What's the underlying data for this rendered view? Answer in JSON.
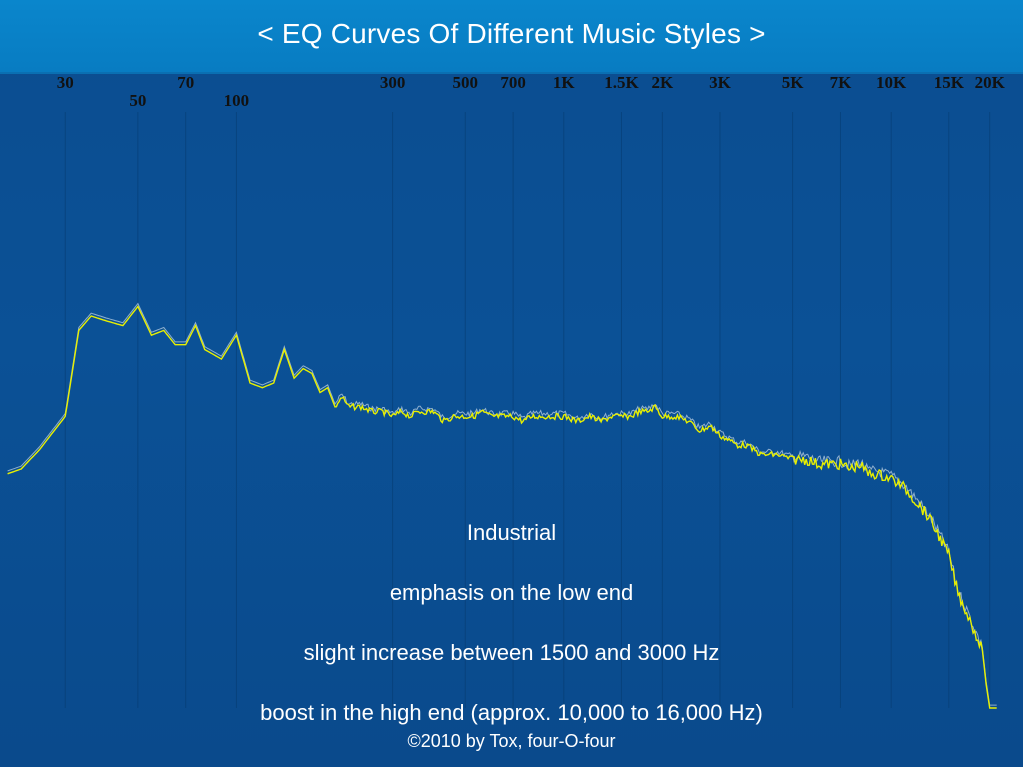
{
  "title": "< EQ Curves Of Different Music Styles >",
  "notes": [
    "Industrial",
    "emphasis on the low end",
    "slight increase between 1500 and 3000 Hz",
    "boost in the high end (approx. 10,000 to 16,000 Hz)"
  ],
  "credit": "©2010 by Tox, four-O-four",
  "colors": {
    "background": "#0b4f93",
    "title_bar": "#0a86cc",
    "curve": "#e8f000",
    "curve_secondary": "#c8d8e8",
    "gridline": "#053a6e",
    "tick_label": "#111111"
  },
  "chart_data": {
    "type": "line",
    "title": "",
    "xlabel": "",
    "ylabel": "",
    "x_scale": "log",
    "x_ticks": [
      {
        "value": 30,
        "label": "30",
        "row": 1
      },
      {
        "value": 50,
        "label": "50",
        "row": 2
      },
      {
        "value": 70,
        "label": "70",
        "row": 1
      },
      {
        "value": 100,
        "label": "100",
        "row": 2
      },
      {
        "value": 300,
        "label": "300",
        "row": 1
      },
      {
        "value": 500,
        "label": "500",
        "row": 1
      },
      {
        "value": 700,
        "label": "700",
        "row": 1
      },
      {
        "value": 1000,
        "label": "1K",
        "row": 1
      },
      {
        "value": 1500,
        "label": "1.5K",
        "row": 1
      },
      {
        "value": 2000,
        "label": "2K",
        "row": 1
      },
      {
        "value": 3000,
        "label": "3K",
        "row": 1
      },
      {
        "value": 5000,
        "label": "5K",
        "row": 1
      },
      {
        "value": 7000,
        "label": "7K",
        "row": 1
      },
      {
        "value": 10000,
        "label": "10K",
        "row": 1
      },
      {
        "value": 15000,
        "label": "15K",
        "row": 1
      },
      {
        "value": 20000,
        "label": "20K",
        "row": 1
      }
    ],
    "y_range": [
      0,
      100
    ],
    "grid": "vertical",
    "series": [
      {
        "color": "#e8f000",
        "x": [
          20,
          22,
          25,
          30,
          33,
          36,
          40,
          45,
          50,
          55,
          60,
          65,
          70,
          75,
          80,
          90,
          100,
          110,
          120,
          130,
          140,
          150,
          160,
          170,
          180,
          190,
          200,
          210,
          220,
          240,
          260,
          280,
          300,
          320,
          340,
          360,
          380,
          400,
          430,
          460,
          500,
          530,
          560,
          600,
          650,
          700,
          750,
          800,
          850,
          900,
          1000,
          1100,
          1200,
          1300,
          1400,
          1500,
          1600,
          1700,
          1800,
          1900,
          2000,
          2200,
          2400,
          2600,
          2800,
          3000,
          3200,
          3400,
          3600,
          3800,
          4000,
          4500,
          5000,
          5500,
          6000,
          6500,
          7000,
          7500,
          8000,
          8500,
          9000,
          10000,
          11000,
          12000,
          13000,
          14000,
          15000,
          16000,
          17000,
          18000,
          19000,
          19500,
          20000,
          20500,
          21000
        ],
        "y": [
          49,
          50,
          54,
          61,
          79,
          82,
          81,
          80,
          84,
          78,
          79,
          76,
          76,
          80,
          75,
          73,
          78,
          68,
          67,
          68,
          75,
          69,
          71,
          70,
          66,
          67,
          63,
          65,
          63,
          63,
          62,
          62,
          61,
          62,
          61,
          62,
          62,
          62,
          60,
          61,
          61,
          61,
          62,
          61,
          61,
          61,
          60,
          61,
          61,
          61,
          61,
          60,
          61,
          60,
          61,
          61,
          61,
          62,
          62,
          63,
          61,
          61,
          60,
          58,
          59,
          57,
          56,
          55,
          55,
          54,
          53,
          53,
          52,
          52,
          51,
          51,
          51,
          50,
          51,
          49,
          49,
          48,
          46,
          43,
          40,
          36,
          32,
          24,
          20,
          16,
          12,
          5,
          0,
          0,
          0
        ]
      }
    ]
  }
}
